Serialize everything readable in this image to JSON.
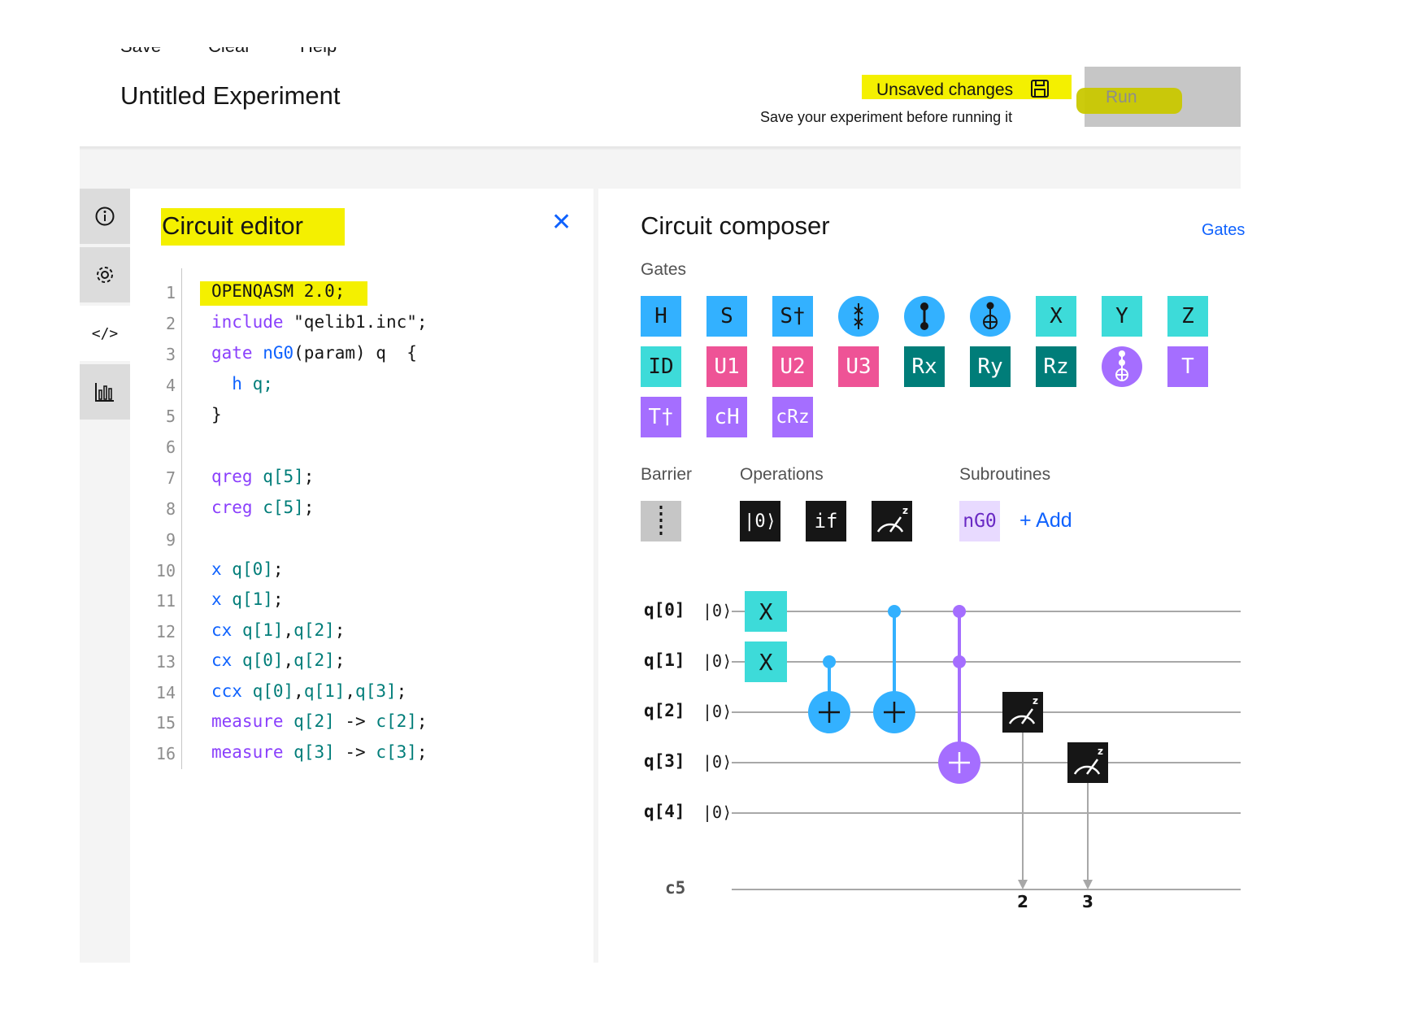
{
  "menu": {
    "save": "Save",
    "clear": "Clear",
    "help": "Help"
  },
  "header": {
    "title": "Untitled Experiment",
    "unsaved": "Unsaved changes",
    "save_note": "Save your experiment before running it",
    "run_label": "Run"
  },
  "editor": {
    "title": "Circuit editor",
    "line_numbers": [
      "1",
      "2",
      "3",
      "4",
      "5",
      "6",
      "7",
      "8",
      "9",
      "10",
      "11",
      "12",
      "13",
      "14",
      "15",
      "16"
    ]
  },
  "code": {
    "l1": "OPENQASM 2.0;",
    "l2a": "include",
    "l2b": " \"qelib1.inc\";",
    "l3a": "gate",
    "l3b": " nG0",
    "l3c": "(param) q  {",
    "l4a": "  h",
    "l4b": " q;",
    "l5": "}",
    "l7a": "qreg",
    "l7b": " q[5]",
    "l7c": ";",
    "l8a": "creg",
    "l8b": " c[5]",
    "l8c": ";",
    "l10a": "x",
    "l10b": " q[0]",
    "l10c": ";",
    "l11a": "x",
    "l11b": " q[1]",
    "l11c": ";",
    "l12a": "cx",
    "l12b": " q[1]",
    "l12c": ",",
    "l12d": "q[2]",
    "l12e": ";",
    "l13a": "cx",
    "l13b": " q[0]",
    "l13c": ",",
    "l13d": "q[2]",
    "l13e": ";",
    "l14a": "ccx",
    "l14b": " q[0]",
    "l14c": ",",
    "l14d": "q[1]",
    "l14e": ",",
    "l14f": "q[3]",
    "l14g": ";",
    "l15a": "measure",
    "l15b": " q[2]",
    "l15c": " -> ",
    "l15d": "c[2]",
    "l15e": ";",
    "l16a": "measure",
    "l16b": " q[3]",
    "l16c": " -> ",
    "l16d": "c[3]",
    "l16e": ";"
  },
  "composer": {
    "title": "Circuit composer",
    "gates_link": "Gates",
    "gates_label": "Gates",
    "barrier_label": "Barrier",
    "operations_label": "Operations",
    "subroutines_label": "Subroutines",
    "gates": {
      "h": "H",
      "s": "S",
      "sdg": "S†",
      "x": "X",
      "y": "Y",
      "z": "Z",
      "id": "ID",
      "u1": "U1",
      "u2": "U2",
      "u3": "U3",
      "rx": "Rx",
      "ry": "Ry",
      "rz": "Rz",
      "t": "T",
      "tdg": "T†",
      "ch": "cH",
      "crz": "cRz"
    },
    "operations": {
      "reset": "|0⟩",
      "if": "if"
    },
    "subroutine": "nG0",
    "add": "+ Add"
  },
  "circuit": {
    "qubits": [
      "q[0]",
      "q[1]",
      "q[2]",
      "q[3]",
      "q[4]"
    ],
    "init_state": "|0⟩",
    "creg": "c5",
    "x_label": "X",
    "measure_targets": [
      "2",
      "3"
    ]
  }
}
